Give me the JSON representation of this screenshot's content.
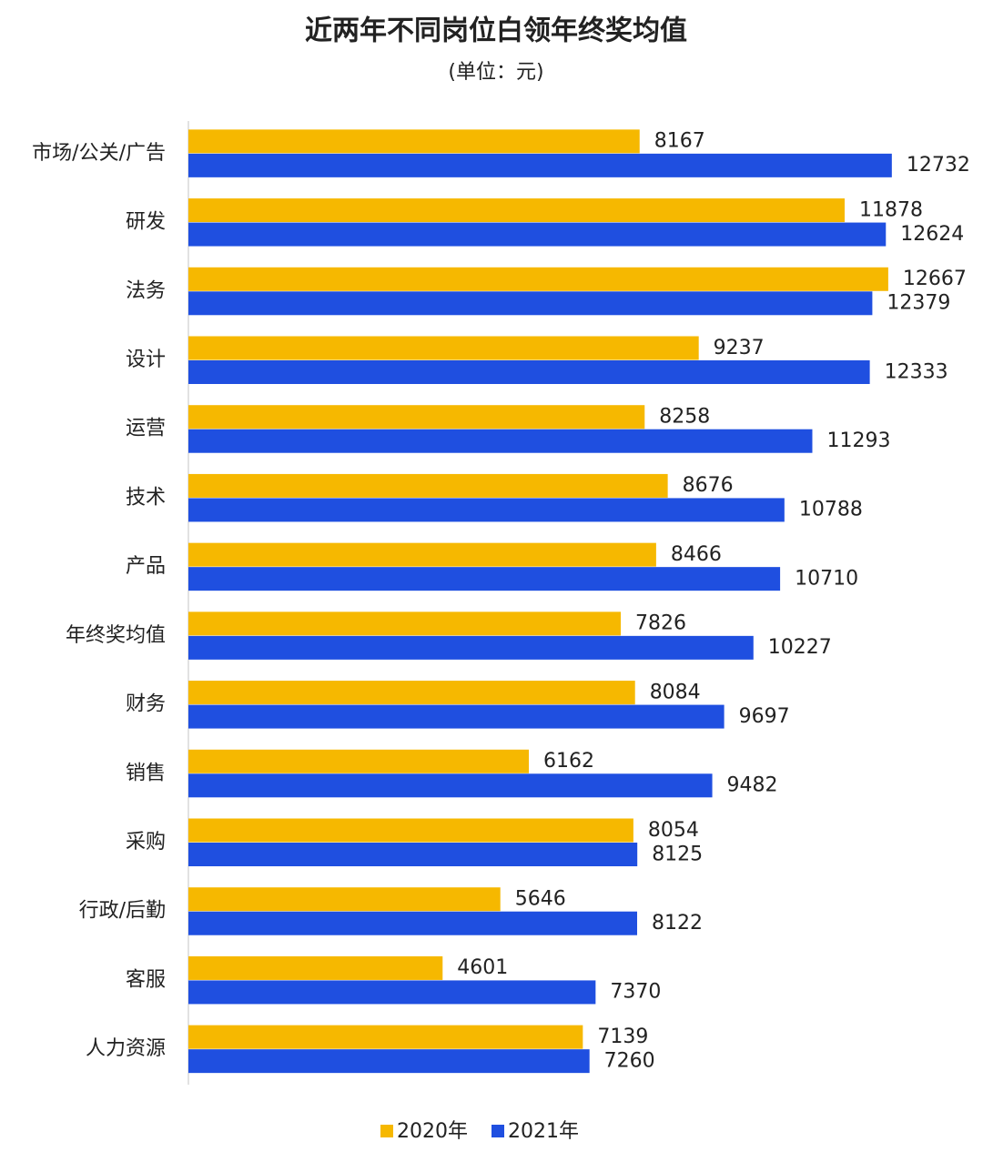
{
  "chart_data": {
    "type": "hbar",
    "title": "近两年不同岗位白领年终奖均值",
    "subtitle": "(单位：元)",
    "categories": [
      "市场/公关/广告",
      "研发",
      "法务",
      "设计",
      "运营",
      "技术",
      "产品",
      "年终奖均值",
      "财务",
      "销售",
      "采购",
      "行政/后勤",
      "客服",
      "人力资源"
    ],
    "series": [
      {
        "name": "2020年",
        "color": "#f6b800",
        "values": [
          8167,
          11878,
          12667,
          9237,
          8258,
          8676,
          8466,
          7826,
          8084,
          6162,
          8054,
          5646,
          4601,
          7139
        ]
      },
      {
        "name": "2021年",
        "color": "#1f4fe0",
        "values": [
          12732,
          12624,
          12379,
          12333,
          11293,
          10788,
          10710,
          10227,
          9697,
          9482,
          8125,
          8122,
          7370,
          7260
        ]
      }
    ],
    "xlim": [
      0,
      14000
    ],
    "legend": "bottom"
  }
}
